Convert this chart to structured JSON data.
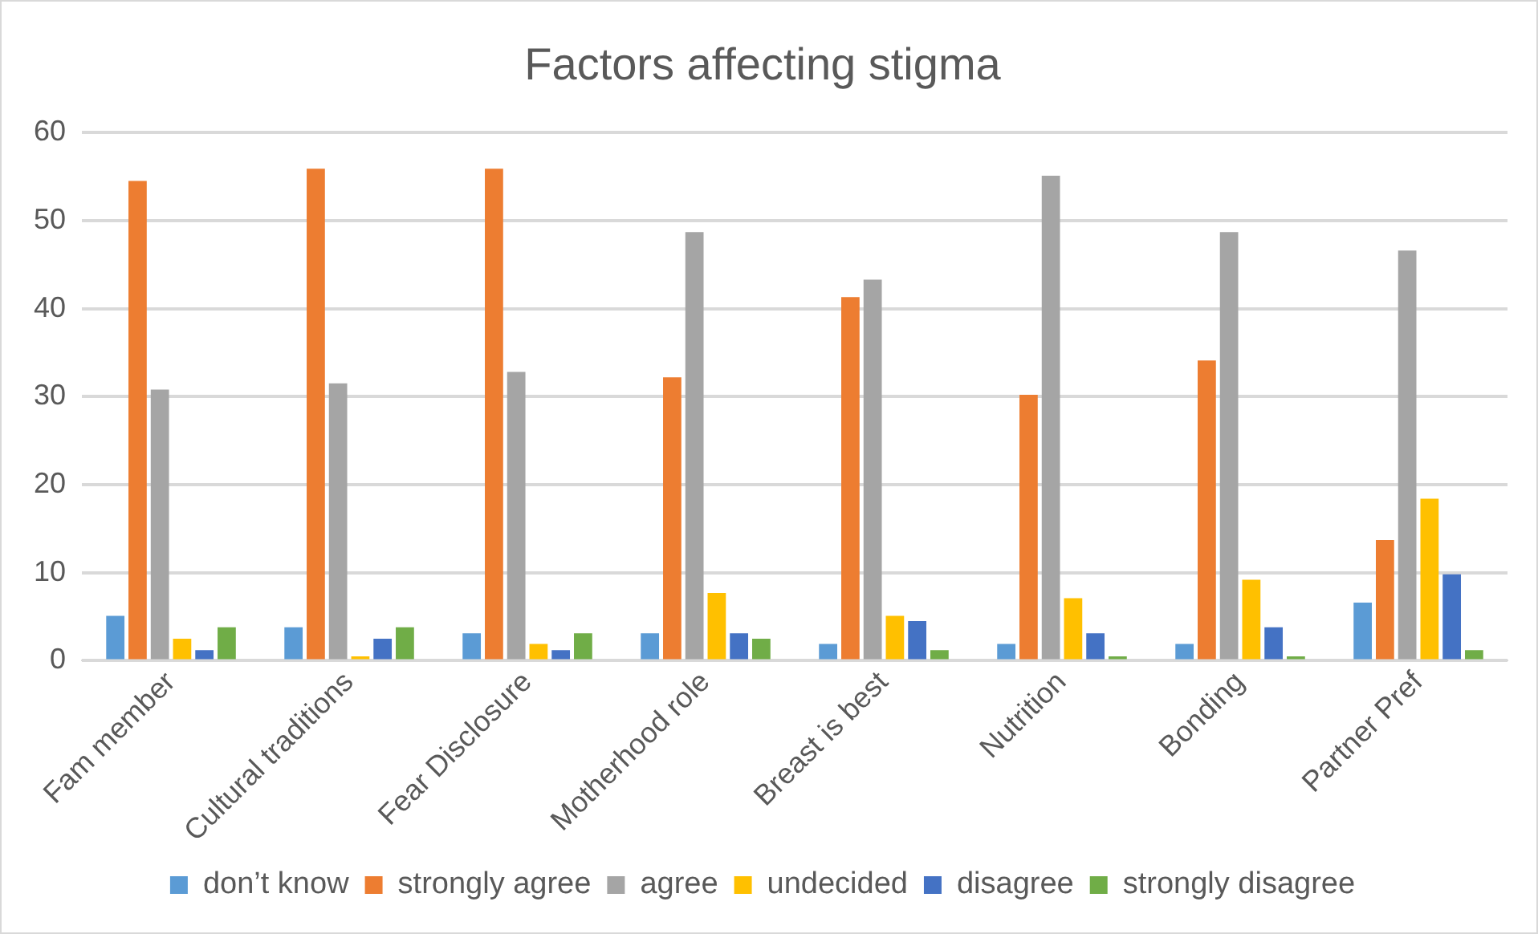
{
  "chart_data": {
    "type": "bar",
    "title": "Factors affecting stigma",
    "categories": [
      "Fam member",
      "Cultural traditions",
      "Fear Disclosure",
      "Motherhood role",
      "Breast is best",
      "Nutrition",
      "Bonding",
      "Partner Pref"
    ],
    "series": [
      {
        "name": "don’t know",
        "color": "#5b9bd5",
        "values": [
          5.1,
          3.8,
          3.1,
          3.1,
          1.9,
          1.9,
          1.9,
          6.6
        ]
      },
      {
        "name": "strongly agree",
        "color": "#ed7d31",
        "values": [
          54.5,
          55.9,
          55.9,
          32.2,
          41.3,
          30.2,
          34.1,
          13.7
        ]
      },
      {
        "name": "agree",
        "color": "#a5a5a5",
        "values": [
          30.8,
          31.5,
          32.8,
          48.7,
          43.3,
          55.1,
          48.7,
          46.6
        ]
      },
      {
        "name": "undecided",
        "color": "#ffc000",
        "values": [
          2.5,
          0.5,
          1.9,
          7.7,
          5.1,
          7.1,
          9.2,
          18.4
        ]
      },
      {
        "name": "disagree",
        "color": "#4472c4",
        "values": [
          1.2,
          2.5,
          1.2,
          3.1,
          4.5,
          3.1,
          3.8,
          9.8
        ]
      },
      {
        "name": "strongly disagree",
        "color": "#70ad47",
        "values": [
          3.8,
          3.8,
          3.1,
          2.5,
          1.2,
          0.5,
          0.5,
          1.2
        ]
      }
    ],
    "ylim": [
      0,
      60
    ],
    "yticks": [
      0,
      10,
      20,
      30,
      40,
      50,
      60
    ],
    "grid": "y",
    "legend": "bottom"
  }
}
